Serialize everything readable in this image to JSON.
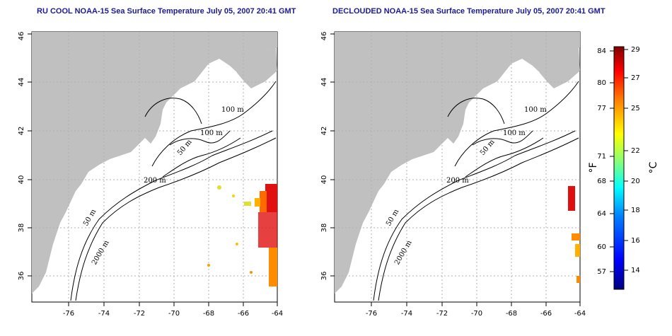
{
  "maps": [
    {
      "title": "RU COOL NOAA-15 Sea Surface Temperature July 05, 2007 20:41 GMT",
      "x_ticks": [
        "-76",
        "-74",
        "-72",
        "-70",
        "-68",
        "-66",
        "-64"
      ],
      "y_ticks": [
        "36",
        "38",
        "40",
        "42",
        "44",
        "46"
      ],
      "contour_labels": [
        "100 m",
        "100 m",
        "50 m",
        "200 m",
        "50 m",
        "2000 m"
      ]
    },
    {
      "title": "DECLOUDED NOAA-15 Sea Surface Temperature July 05, 2007 20:41 GMT",
      "x_ticks": [
        "-76",
        "-74",
        "-72",
        "-70",
        "-68",
        "-66",
        "-64"
      ],
      "y_ticks": [
        "36",
        "38",
        "40",
        "42",
        "44",
        "46"
      ],
      "contour_labels": [
        "100 m",
        "100 m",
        "50 m",
        "200 m",
        "50 m",
        "2000 m"
      ]
    }
  ],
  "colorbar": {
    "fahrenheit_label": "°F",
    "celsius_label": "°C",
    "fahrenheit_ticks": [
      "84",
      "80",
      "77",
      "71",
      "68",
      "64",
      "60",
      "57"
    ],
    "celsius_ticks": [
      "29",
      "27",
      "25",
      "22",
      "20",
      "18",
      "16",
      "14"
    ],
    "colors": [
      "#00007f",
      "#0000ff",
      "#007fff",
      "#00ffff",
      "#7fff7f",
      "#ffff00",
      "#ff7f00",
      "#ff0000",
      "#7f0000"
    ]
  },
  "colors": {
    "land": "#c0c0c0",
    "title_text": "#1a1a9a",
    "grid": "#b0b0b0"
  }
}
